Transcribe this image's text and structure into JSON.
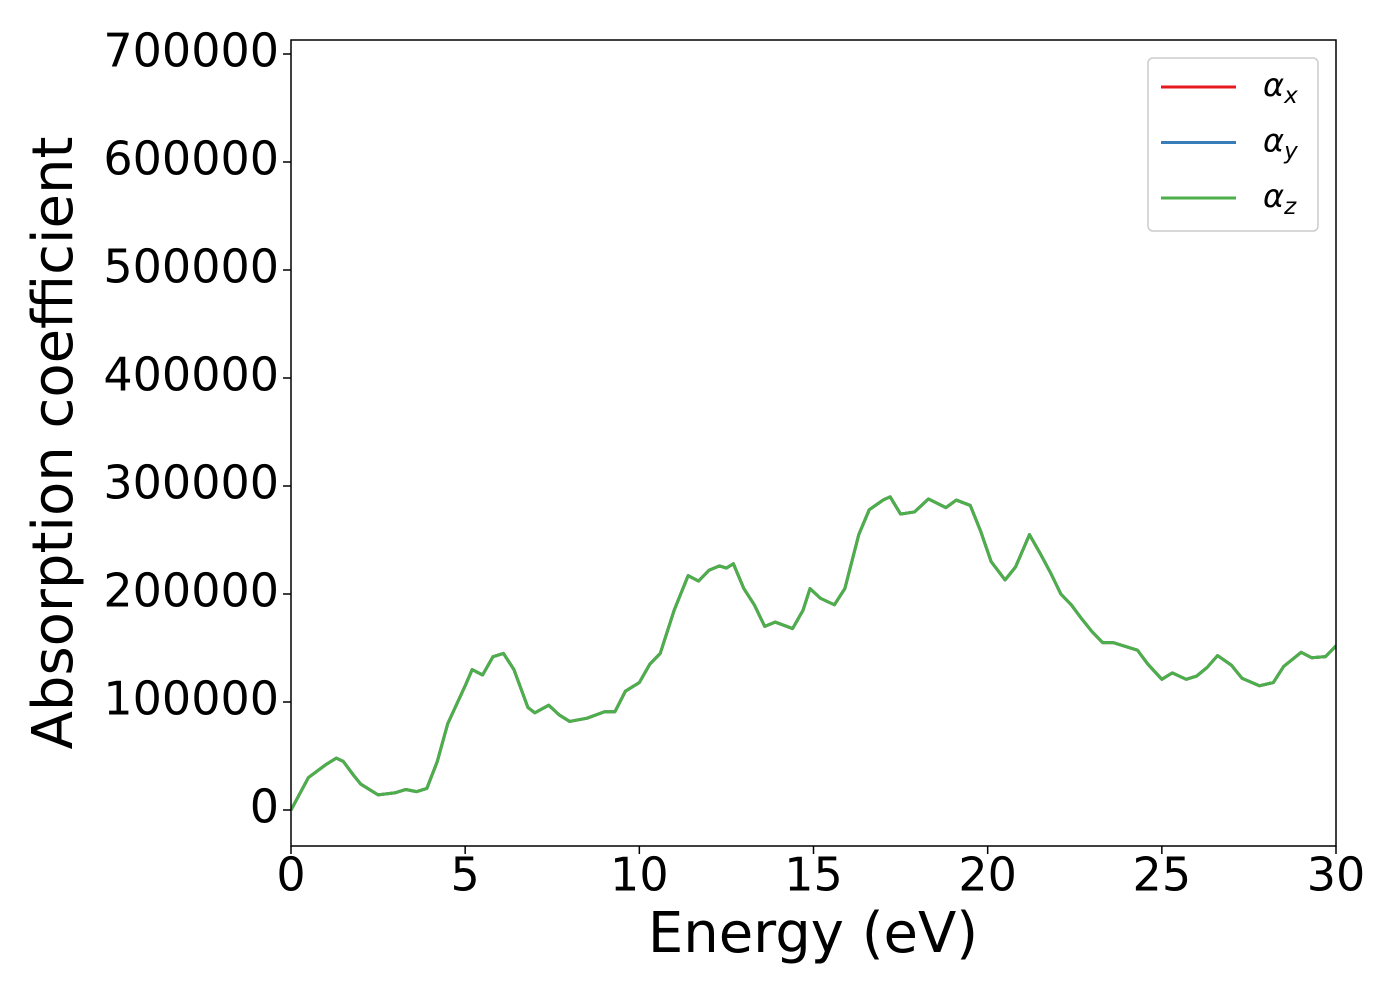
{
  "chart_data": {
    "type": "line",
    "xlabel": "Energy (eV)",
    "ylabel": "Absorption coefficient",
    "x": [
      0,
      0.25,
      0.5,
      1,
      1.3,
      1.5,
      1.8,
      2,
      2.5,
      3,
      3.3,
      3.6,
      3.9,
      4.2,
      4.5,
      5,
      5.2,
      5.5,
      5.8,
      6.1,
      6.4,
      6.8,
      7,
      7.4,
      7.7,
      8,
      8.5,
      9,
      9.3,
      9.6,
      10,
      10.3,
      10.6,
      11,
      11.4,
      11.7,
      12,
      12.3,
      12.5,
      12.7,
      13,
      13.3,
      13.6,
      13.9,
      14.4,
      14.7,
      14.9,
      15.2,
      15.6,
      15.9,
      16.3,
      16.6,
      17,
      17.2,
      17.5,
      17.9,
      18.3,
      18.8,
      19.1,
      19.5,
      19.8,
      20.1,
      20.5,
      20.8,
      21.2,
      21.5,
      21.8,
      22.1,
      22.4,
      22.7,
      23,
      23.3,
      23.6,
      24,
      24.3,
      24.6,
      25,
      25.3,
      25.7,
      26,
      26.3,
      26.6,
      27,
      27.3,
      27.8,
      28.2,
      28.5,
      29,
      29.3,
      29.7,
      30
    ],
    "series": [
      {
        "name": "αx",
        "color": "#e41a1c",
        "values": [
          0,
          15000,
          30000,
          42000,
          48000,
          45000,
          32000,
          24000,
          14000,
          16000,
          19000,
          17000,
          20000,
          45000,
          80000,
          115000,
          130000,
          125000,
          142000,
          145000,
          130000,
          95000,
          90000,
          97000,
          88000,
          82000,
          85000,
          91000,
          91000,
          110000,
          118000,
          135000,
          145000,
          185000,
          217000,
          212000,
          222000,
          226000,
          224000,
          228000,
          205000,
          190000,
          170000,
          174000,
          168000,
          185000,
          205000,
          196000,
          190000,
          205000,
          255000,
          278000,
          287000,
          290000,
          274000,
          276000,
          288000,
          280000,
          287000,
          282000,
          258000,
          230000,
          213000,
          225000,
          255000,
          238000,
          220000,
          200000,
          190000,
          177000,
          165000,
          155000,
          155000,
          151000,
          148000,
          135000,
          121000,
          127000,
          121000,
          124000,
          132000,
          143000,
          134000,
          122000,
          115000,
          118000,
          133000,
          146000,
          141000,
          142000,
          152000
        ]
      },
      {
        "name": "αy",
        "color": "#377eb8",
        "values": [
          0,
          15000,
          30000,
          42000,
          48000,
          45000,
          32000,
          24000,
          14000,
          16000,
          19000,
          17000,
          20000,
          45000,
          80000,
          115000,
          130000,
          125000,
          142000,
          145000,
          130000,
          95000,
          90000,
          97000,
          88000,
          82000,
          85000,
          91000,
          91000,
          110000,
          118000,
          135000,
          145000,
          185000,
          217000,
          212000,
          222000,
          226000,
          224000,
          228000,
          205000,
          190000,
          170000,
          174000,
          168000,
          185000,
          205000,
          196000,
          190000,
          205000,
          255000,
          278000,
          287000,
          290000,
          274000,
          276000,
          288000,
          280000,
          287000,
          282000,
          258000,
          230000,
          213000,
          225000,
          255000,
          238000,
          220000,
          200000,
          190000,
          177000,
          165000,
          155000,
          155000,
          151000,
          148000,
          135000,
          121000,
          127000,
          121000,
          124000,
          132000,
          143000,
          134000,
          122000,
          115000,
          118000,
          133000,
          146000,
          141000,
          142000,
          152000
        ]
      },
      {
        "name": "αz",
        "color": "#4daf4a",
        "values": [
          0,
          15000,
          30000,
          42000,
          48000,
          45000,
          32000,
          24000,
          14000,
          16000,
          19000,
          17000,
          20000,
          45000,
          80000,
          115000,
          130000,
          125000,
          142000,
          145000,
          130000,
          95000,
          90000,
          97000,
          88000,
          82000,
          85000,
          91000,
          91000,
          110000,
          118000,
          135000,
          145000,
          185000,
          217000,
          212000,
          222000,
          226000,
          224000,
          228000,
          205000,
          190000,
          170000,
          174000,
          168000,
          185000,
          205000,
          196000,
          190000,
          205000,
          255000,
          278000,
          287000,
          290000,
          274000,
          276000,
          288000,
          280000,
          287000,
          282000,
          258000,
          230000,
          213000,
          225000,
          255000,
          238000,
          220000,
          200000,
          190000,
          177000,
          165000,
          155000,
          155000,
          151000,
          148000,
          135000,
          121000,
          127000,
          121000,
          124000,
          132000,
          143000,
          134000,
          122000,
          115000,
          118000,
          133000,
          146000,
          141000,
          142000,
          152000
        ]
      }
    ],
    "xlim": [
      0,
      30
    ],
    "xticks": [
      0,
      5,
      10,
      15,
      20,
      25,
      30
    ],
    "ylim": [
      -33333,
      712963
    ],
    "yticks": [
      0,
      100000,
      200000,
      300000,
      400000,
      500000,
      600000,
      700000
    ],
    "grid": false,
    "legend": "upper right"
  }
}
